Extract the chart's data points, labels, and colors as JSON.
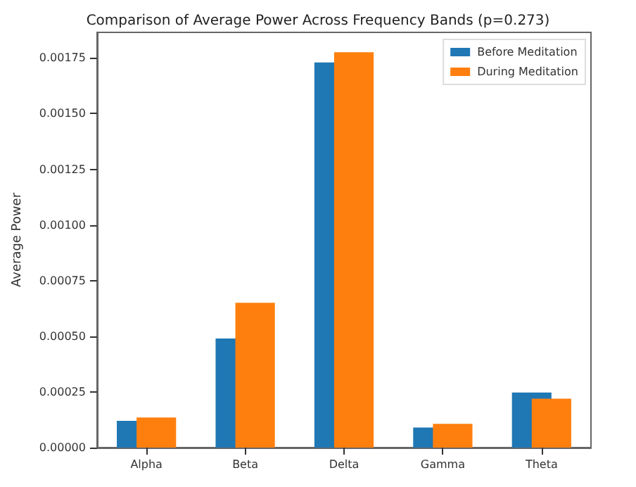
{
  "chart_data": {
    "type": "bar",
    "title": "Comparison of Average Power Across Frequency Bands (p=0.273)",
    "ylabel": "Average Power",
    "categories": [
      "Alpha",
      "Beta",
      "Delta",
      "Gamma",
      "Theta"
    ],
    "series": [
      {
        "name": "Before Meditation",
        "color": "#1f77b4",
        "values": [
          0.00012,
          0.00049,
          0.00173,
          9e-05,
          0.000247
        ]
      },
      {
        "name": "During Meditation",
        "color": "#ff7f0e",
        "values": [
          0.000135,
          0.00065,
          0.001776,
          0.000107,
          0.00022
        ]
      }
    ],
    "ylim": [
      0,
      0.001865
    ],
    "yticks": [
      {
        "value": 0,
        "label": "0.00000"
      },
      {
        "value": 0.00025,
        "label": "0.00025"
      },
      {
        "value": 0.0005,
        "label": "0.00050"
      },
      {
        "value": 0.00075,
        "label": "0.00075"
      },
      {
        "value": 0.001,
        "label": "0.00100"
      },
      {
        "value": 0.00125,
        "label": "0.00125"
      },
      {
        "value": 0.0015,
        "label": "0.00150"
      },
      {
        "value": 0.00175,
        "label": "0.00175"
      }
    ],
    "grid": false,
    "legend": "top right"
  }
}
